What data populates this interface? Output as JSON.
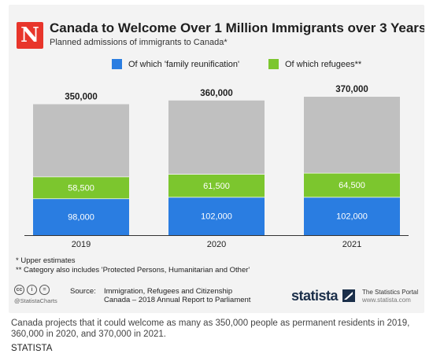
{
  "header": {
    "logo_letter": "N",
    "title": "Canada to Welcome Over 1 Million Immigrants over 3 Years",
    "subtitle": "Planned admissions of immigrants to Canada*"
  },
  "legend": {
    "family": "Of which 'family reunification'",
    "refugees": "Of which refugees**"
  },
  "chart_data": {
    "type": "bar",
    "stacked": true,
    "categories": [
      "2019",
      "2020",
      "2021"
    ],
    "totals": [
      350000,
      360000,
      370000
    ],
    "total_labels": [
      "350,000",
      "360,000",
      "370,000"
    ],
    "series": [
      {
        "name": "Of which 'family reunification'",
        "color": "#2a7de1",
        "values": [
          98000,
          102000,
          102000
        ],
        "labels": [
          "98,000",
          "102,000",
          "102,000"
        ]
      },
      {
        "name": "Of which refugees**",
        "color": "#7cc62e",
        "values": [
          58500,
          61500,
          64500
        ],
        "labels": [
          "58,500",
          "61,500",
          "64,500"
        ]
      },
      {
        "name": "",
        "color": "#c0c0c0",
        "values": [
          193500,
          196500,
          203500
        ],
        "labels": [
          "",
          "",
          ""
        ]
      }
    ],
    "ylim": [
      0,
      370000
    ],
    "grid": false,
    "legend_position": "top"
  },
  "notes": {
    "note1": "* Upper estimates",
    "note2": "** Category also includes 'Protected Persons, Humanitarian and Other'"
  },
  "footer": {
    "cc": "cc",
    "by": "i",
    "eq": "=",
    "handle": "@StatistaCharts",
    "source_label": "Source:",
    "source_line1": "Immigration, Refugees and Citizenship",
    "source_line2": "Canada – 2018 Annual Report to Parliament",
    "brand": "statista",
    "portal": "The Statistics Portal",
    "portal_url": "www.statista.com"
  },
  "caption": "Canada projects that it could welcome as many as 350,000 people as permanent residents in 2019, 360,000 in 2020, and 370,000 in 2021.",
  "credit": "STATISTA"
}
